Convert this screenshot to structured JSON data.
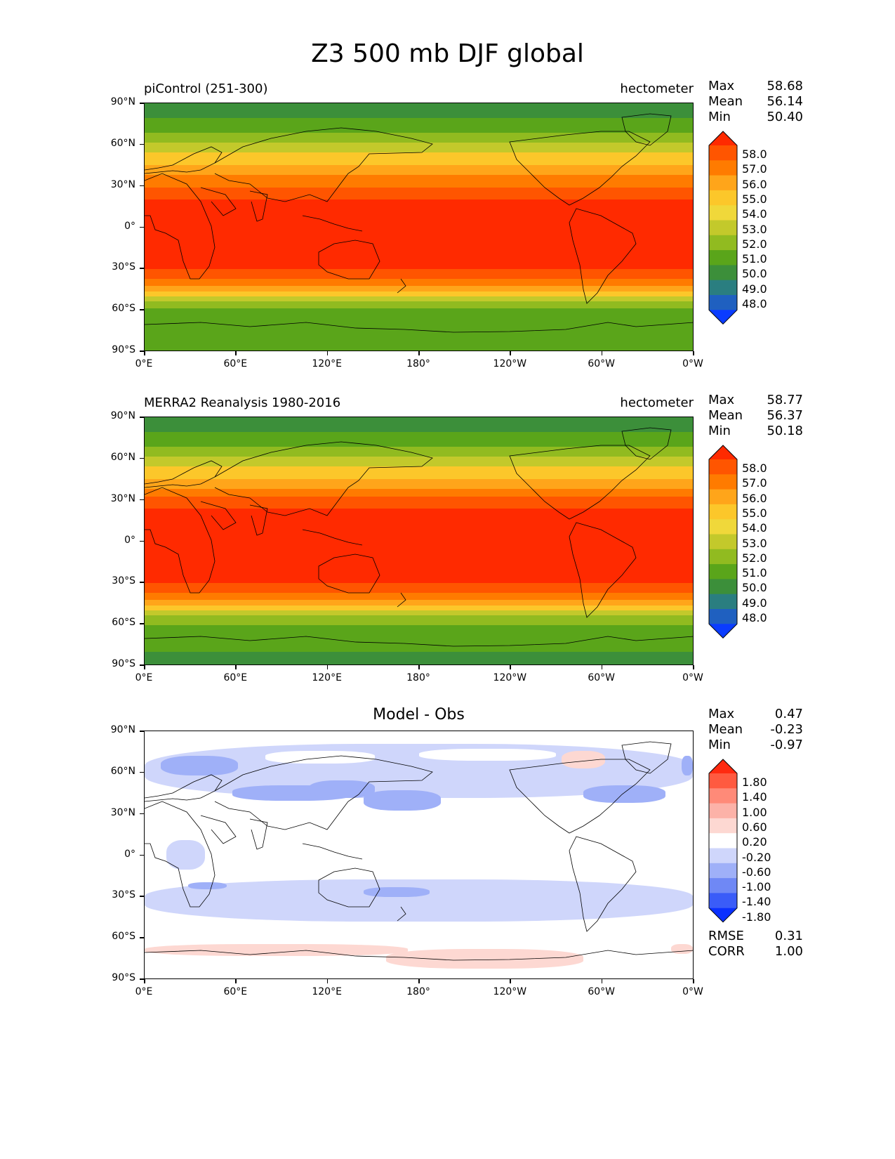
{
  "title": "Z3 500 mb DJF global",
  "lat_ticks": [
    "90°N",
    "60°N",
    "30°N",
    "0°",
    "30°S",
    "60°S",
    "90°S"
  ],
  "lon_ticks": [
    "0°E",
    "60°E",
    "120°E",
    "180°",
    "120°W",
    "60°W",
    "0°W"
  ],
  "panels": [
    {
      "left_title": "piControl (251-300)",
      "right_title": "hectometer",
      "center_title": "",
      "stats": {
        "max_label": "Max",
        "max": "58.68",
        "mean_label": "Mean",
        "mean": "56.14",
        "min_label": "Min",
        "min": "50.40"
      },
      "colorbar": {
        "levels": [
          "58.0",
          "57.0",
          "56.0",
          "55.0",
          "54.0",
          "53.0",
          "52.0",
          "51.0",
          "50.0",
          "49.0",
          "48.0"
        ],
        "colors": [
          "#ff2a00",
          "#ff5500",
          "#ff7b00",
          "#ffa51a",
          "#fcc72a",
          "#f0d83a",
          "#c3c92b",
          "#91bb20",
          "#5aa51a",
          "#3c8f3a",
          "#2a7e80",
          "#1f60c0",
          "#0a3cff"
        ]
      }
    },
    {
      "left_title": "MERRA2 Reanalysis 1980-2016",
      "right_title": "hectometer",
      "center_title": "",
      "stats": {
        "max_label": "Max",
        "max": "58.77",
        "mean_label": "Mean",
        "mean": "56.37",
        "min_label": "Min",
        "min": "50.18"
      },
      "colorbar": {
        "levels": [
          "58.0",
          "57.0",
          "56.0",
          "55.0",
          "54.0",
          "53.0",
          "52.0",
          "51.0",
          "50.0",
          "49.0",
          "48.0"
        ],
        "colors": [
          "#ff2a00",
          "#ff5500",
          "#ff7b00",
          "#ffa51a",
          "#fcc72a",
          "#f0d83a",
          "#c3c92b",
          "#91bb20",
          "#5aa51a",
          "#3c8f3a",
          "#2a7e80",
          "#1f60c0",
          "#0a3cff"
        ]
      }
    },
    {
      "left_title": "",
      "right_title": "",
      "center_title": "Model - Obs",
      "stats": {
        "max_label": "Max",
        "max": "0.47",
        "mean_label": "Mean",
        "mean": "-0.23",
        "min_label": "Min",
        "min": "-0.97"
      },
      "extra": {
        "rmse_label": "RMSE",
        "rmse": "0.31",
        "corr_label": "CORR",
        "corr": "1.00"
      },
      "colorbar": {
        "levels": [
          "1.80",
          "1.40",
          "1.00",
          "0.60",
          "0.20",
          "-0.20",
          "-0.60",
          "-1.00",
          "-1.40",
          "-1.80"
        ],
        "colors": [
          "#ff2a10",
          "#ff5a40",
          "#ff8a78",
          "#fcb2a8",
          "#fdd8d2",
          "#ffffff",
          "#cfd6fb",
          "#9fb0f8",
          "#6f88f5",
          "#3a5cf8",
          "#0a30ff"
        ]
      }
    }
  ]
}
